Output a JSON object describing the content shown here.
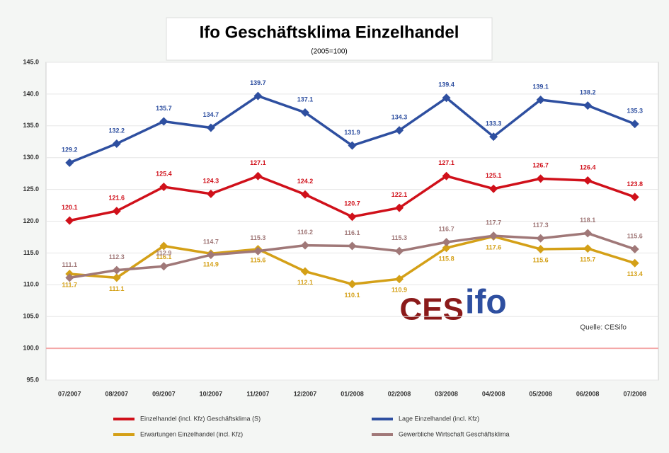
{
  "chart_data": {
    "type": "line",
    "title": "Ifo Geschäftsklima Einzelhandel",
    "subtitle": "(2005=100)",
    "source": "Quelle: CESifo",
    "logo_left": "CES",
    "logo_right": "ifo",
    "categories": [
      "07/2007",
      "08/2007",
      "09/2007",
      "10/2007",
      "11/2007",
      "12/2007",
      "01/2008",
      "02/2008",
      "03/2008",
      "04/2008",
      "05/2008",
      "06/2008",
      "07/2008"
    ],
    "ylim": [
      95,
      145
    ],
    "yticks": [
      {
        "value": 95,
        "label": "95.0"
      },
      {
        "value": 100,
        "label": "100.0"
      },
      {
        "value": 105,
        "label": "105.0"
      },
      {
        "value": 110,
        "label": "110.0"
      },
      {
        "value": 115,
        "label": "115.0"
      },
      {
        "value": 120,
        "label": "120.0"
      },
      {
        "value": 125,
        "label": "125.0"
      },
      {
        "value": 130,
        "label": "130.0"
      },
      {
        "value": 135,
        "label": "135.0"
      },
      {
        "value": 140,
        "label": "140.0"
      },
      {
        "value": 145,
        "label": "145.0"
      }
    ],
    "grid": true,
    "reference_line": {
      "value": 100,
      "color": "#f4a6a6"
    },
    "series": [
      {
        "name": "Einzelhandel (incl. Kfz) Geschäftsklima (S)",
        "color": "#d0101a",
        "label_pos": "above",
        "values": [
          120.1,
          121.6,
          125.4,
          124.3,
          127.1,
          124.2,
          120.7,
          122.1,
          127.1,
          125.1,
          126.7,
          126.4,
          123.8
        ]
      },
      {
        "name": "Lage Einzelhandel (incl. Kfz)",
        "color": "#2e4fa0",
        "label_pos": "above",
        "values": [
          129.2,
          132.2,
          135.7,
          134.7,
          139.7,
          137.1,
          131.9,
          134.3,
          139.4,
          133.3,
          139.1,
          138.2,
          135.3
        ]
      },
      {
        "name": "Erwartungen Einzelhandel (incl. Kfz)",
        "color": "#d4a017",
        "label_pos": "below",
        "values": [
          111.7,
          111.1,
          116.1,
          114.9,
          115.6,
          112.1,
          110.1,
          110.9,
          115.8,
          117.6,
          115.6,
          115.7,
          113.4
        ]
      },
      {
        "name": "Gewerbliche Wirtschaft Geschäftsklima",
        "color": "#a07878",
        "label_pos": "above",
        "values": [
          111.1,
          112.3,
          112.9,
          114.7,
          115.3,
          116.2,
          116.1,
          115.3,
          116.7,
          117.7,
          117.3,
          118.1,
          115.6
        ]
      }
    ]
  }
}
